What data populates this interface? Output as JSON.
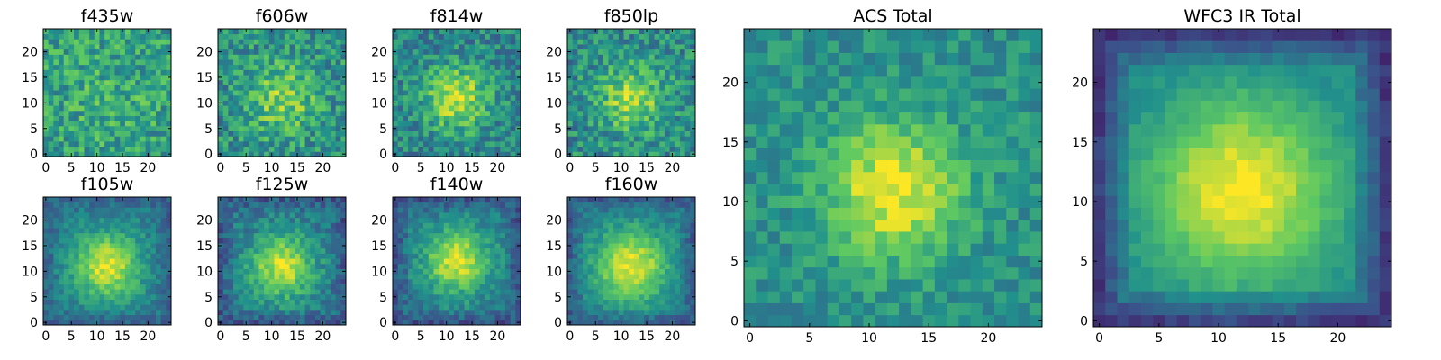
{
  "figure": {
    "colormap": [
      "#440154",
      "#3b528b",
      "#21918c",
      "#5ec962",
      "#fde725"
    ]
  },
  "chart_data": [
    {
      "type": "heatmap",
      "title": "f435w",
      "grid": [
        25,
        25
      ],
      "xlim": [
        -0.5,
        24.5
      ],
      "ylim": [
        -0.5,
        24.5
      ],
      "xticks": [
        0,
        5,
        10,
        15,
        20
      ],
      "yticks": [
        0,
        5,
        10,
        15,
        20
      ],
      "x_tick_labels": [
        "0",
        "5",
        "10",
        "15",
        "20"
      ],
      "y_tick_labels": [
        "0",
        "5",
        "10",
        "15",
        "20"
      ],
      "center": [
        12,
        11
      ],
      "peak": 0.62,
      "spread": 8.0,
      "background": 0.55,
      "noise": 0.4,
      "edge_dark": 0.0,
      "seed": 11
    },
    {
      "type": "heatmap",
      "title": "f606w",
      "grid": [
        25,
        25
      ],
      "xlim": [
        -0.5,
        24.5
      ],
      "ylim": [
        -0.5,
        24.5
      ],
      "xticks": [
        0,
        5,
        10,
        15,
        20
      ],
      "yticks": [
        0,
        5,
        10,
        15,
        20
      ],
      "x_tick_labels": [
        "0",
        "5",
        "10",
        "15",
        "20"
      ],
      "y_tick_labels": [
        "0",
        "5",
        "10",
        "15",
        "20"
      ],
      "center": [
        12,
        11
      ],
      "peak": 0.8,
      "spread": 5.0,
      "background": 0.5,
      "noise": 0.4,
      "edge_dark": 0.0,
      "seed": 23
    },
    {
      "type": "heatmap",
      "title": "f814w",
      "grid": [
        25,
        25
      ],
      "xlim": [
        -0.5,
        24.5
      ],
      "ylim": [
        -0.5,
        24.5
      ],
      "xticks": [
        0,
        5,
        10,
        15,
        20
      ],
      "yticks": [
        0,
        5,
        10,
        15,
        20
      ],
      "x_tick_labels": [
        "0",
        "5",
        "10",
        "15",
        "20"
      ],
      "y_tick_labels": [
        "0",
        "5",
        "10",
        "15",
        "20"
      ],
      "center": [
        12,
        11
      ],
      "peak": 0.9,
      "spread": 4.5,
      "background": 0.45,
      "noise": 0.36,
      "edge_dark": 0.0,
      "seed": 37
    },
    {
      "type": "heatmap",
      "title": "f850lp",
      "grid": [
        25,
        25
      ],
      "xlim": [
        -0.5,
        24.5
      ],
      "ylim": [
        -0.5,
        24.5
      ],
      "xticks": [
        0,
        5,
        10,
        15,
        20
      ],
      "yticks": [
        0,
        5,
        10,
        15,
        20
      ],
      "x_tick_labels": [
        "0",
        "5",
        "10",
        "15",
        "20"
      ],
      "y_tick_labels": [
        "0",
        "5",
        "10",
        "15",
        "20"
      ],
      "center": [
        12,
        11
      ],
      "peak": 0.85,
      "spread": 4.5,
      "background": 0.48,
      "noise": 0.38,
      "edge_dark": 0.0,
      "seed": 41
    },
    {
      "type": "heatmap",
      "title": "f105w",
      "grid": [
        25,
        25
      ],
      "xlim": [
        -0.5,
        24.5
      ],
      "ylim": [
        -0.5,
        24.5
      ],
      "xticks": [
        0,
        5,
        10,
        15,
        20
      ],
      "yticks": [
        0,
        5,
        10,
        15,
        20
      ],
      "x_tick_labels": [
        "0",
        "5",
        "10",
        "15",
        "20"
      ],
      "y_tick_labels": [
        "0",
        "5",
        "10",
        "15",
        "20"
      ],
      "center": [
        12,
        11
      ],
      "peak": 0.95,
      "spread": 4.5,
      "background": 0.42,
      "noise": 0.2,
      "edge_dark": 0.1,
      "seed": 53
    },
    {
      "type": "heatmap",
      "title": "f125w",
      "grid": [
        25,
        25
      ],
      "xlim": [
        -0.5,
        24.5
      ],
      "ylim": [
        -0.5,
        24.5
      ],
      "xticks": [
        0,
        5,
        10,
        15,
        20
      ],
      "yticks": [
        0,
        5,
        10,
        15,
        20
      ],
      "x_tick_labels": [
        "0",
        "5",
        "10",
        "15",
        "20"
      ],
      "y_tick_labels": [
        "0",
        "5",
        "10",
        "15",
        "20"
      ],
      "center": [
        12,
        11
      ],
      "peak": 0.92,
      "spread": 4.5,
      "background": 0.4,
      "noise": 0.24,
      "edge_dark": 0.12,
      "seed": 67
    },
    {
      "type": "heatmap",
      "title": "f140w",
      "grid": [
        25,
        25
      ],
      "xlim": [
        -0.5,
        24.5
      ],
      "ylim": [
        -0.5,
        24.5
      ],
      "xticks": [
        0,
        5,
        10,
        15,
        20
      ],
      "yticks": [
        0,
        5,
        10,
        15,
        20
      ],
      "x_tick_labels": [
        "0",
        "5",
        "10",
        "15",
        "20"
      ],
      "y_tick_labels": [
        "0",
        "5",
        "10",
        "15",
        "20"
      ],
      "center": [
        12,
        12
      ],
      "peak": 0.95,
      "spread": 4.5,
      "background": 0.4,
      "noise": 0.22,
      "edge_dark": 0.14,
      "seed": 79
    },
    {
      "type": "heatmap",
      "title": "f160w",
      "grid": [
        25,
        25
      ],
      "xlim": [
        -0.5,
        24.5
      ],
      "ylim": [
        -0.5,
        24.5
      ],
      "xticks": [
        0,
        5,
        10,
        15,
        20
      ],
      "yticks": [
        0,
        5,
        10,
        15,
        20
      ],
      "x_tick_labels": [
        "0",
        "5",
        "10",
        "15",
        "20"
      ],
      "y_tick_labels": [
        "0",
        "5",
        "10",
        "15",
        "20"
      ],
      "center": [
        12,
        11
      ],
      "peak": 0.97,
      "spread": 5.0,
      "background": 0.42,
      "noise": 0.18,
      "edge_dark": 0.14,
      "seed": 83
    },
    {
      "type": "heatmap",
      "title": "ACS Total",
      "grid": [
        25,
        25
      ],
      "xlim": [
        -0.5,
        24.5
      ],
      "ylim": [
        -0.5,
        24.5
      ],
      "xticks": [
        0,
        5,
        10,
        15,
        20
      ],
      "yticks": [
        0,
        5,
        10,
        15,
        20
      ],
      "x_tick_labels": [
        "0",
        "5",
        "10",
        "15",
        "20"
      ],
      "y_tick_labels": [
        "0",
        "5",
        "10",
        "15",
        "20"
      ],
      "center": [
        12,
        11
      ],
      "peak": 0.98,
      "spread": 4.0,
      "background": 0.5,
      "noise": 0.24,
      "edge_dark": 0.0,
      "seed": 97
    },
    {
      "type": "heatmap",
      "title": "WFC3 IR Total",
      "grid": [
        25,
        25
      ],
      "xlim": [
        -0.5,
        24.5
      ],
      "ylim": [
        -0.5,
        24.5
      ],
      "xticks": [
        0,
        5,
        10,
        15,
        20
      ],
      "yticks": [
        0,
        5,
        10,
        15,
        20
      ],
      "x_tick_labels": [
        "0",
        "5",
        "10",
        "15",
        "20"
      ],
      "y_tick_labels": [
        "0",
        "5",
        "10",
        "15",
        "20"
      ],
      "center": [
        12,
        11
      ],
      "peak": 1.0,
      "spread": 5.5,
      "background": 0.45,
      "noise": 0.1,
      "edge_dark": 0.3,
      "seed": 101
    }
  ]
}
